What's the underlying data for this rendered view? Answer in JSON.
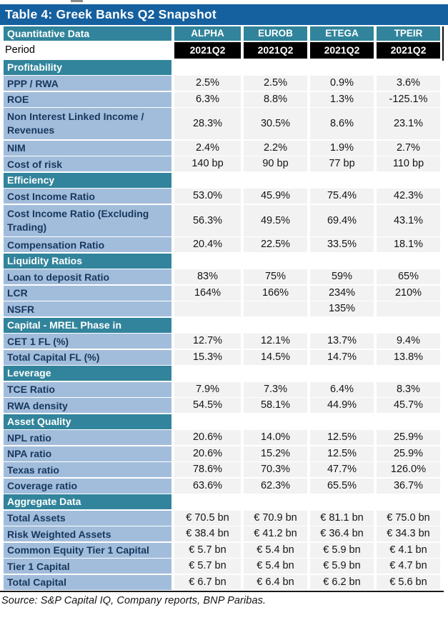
{
  "page": {
    "title": "Table 4: Greek Banks Q2 Snapshot",
    "source_note": "Source: S&P Capital IQ, Company reports, BNP Paribas."
  },
  "colors": {
    "title_bar": "#15609F",
    "section_header": "#31849B",
    "row_label": "#A2BDDB",
    "value_cell": "#F2F2F2",
    "period_cell": "#000000",
    "label_text": "#17375E"
  },
  "table": {
    "header": {
      "label": "Quantitative Data",
      "columns": [
        "ALPHA",
        "EUROB",
        "ETEGA",
        "TPEIR"
      ]
    },
    "period_row": {
      "label": "Period",
      "values": [
        "2021Q2",
        "2021Q2",
        "2021Q2",
        "2021Q2"
      ]
    },
    "sections": [
      {
        "title": "Profitability",
        "rows": [
          {
            "label": "PPP / RWA",
            "values": [
              "2.5%",
              "2.5%",
              "0.9%",
              "3.6%"
            ]
          },
          {
            "label": "ROE",
            "values": [
              "6.3%",
              "8.8%",
              "1.3%",
              "-125.1%"
            ]
          },
          {
            "label": "Non Interest Linked Income / Revenues",
            "tall": true,
            "values": [
              "28.3%",
              "30.5%",
              "8.6%",
              "23.1%"
            ]
          },
          {
            "label": "NIM",
            "values": [
              "2.4%",
              "2.2%",
              "1.9%",
              "2.7%"
            ]
          },
          {
            "label": "Cost of risk",
            "values": [
              "140 bp",
              "90 bp",
              "77 bp",
              "110 bp"
            ]
          }
        ]
      },
      {
        "title": "Efficiency",
        "rows": [
          {
            "label": "Cost Income Ratio",
            "values": [
              "53.0%",
              "45.9%",
              "75.4%",
              "42.3%"
            ]
          },
          {
            "label": "Cost Income Ratio (Excluding Trading)",
            "tall": true,
            "values": [
              "56.3%",
              "49.5%",
              "69.4%",
              "43.1%"
            ]
          },
          {
            "label": "Compensation Ratio",
            "values": [
              "20.4%",
              "22.5%",
              "33.5%",
              "18.1%"
            ]
          }
        ]
      },
      {
        "title": "Liquidity Ratios",
        "rows": [
          {
            "label": "Loan to deposit Ratio",
            "values": [
              "83%",
              "75%",
              "59%",
              "65%"
            ]
          },
          {
            "label": "LCR",
            "values": [
              "164%",
              "166%",
              "234%",
              "210%"
            ]
          },
          {
            "label": "NSFR",
            "values": [
              "",
              "",
              "135%",
              ""
            ]
          }
        ]
      },
      {
        "title": "Capital - MREL Phase in",
        "rows": [
          {
            "label": "CET 1 FL (%)",
            "values": [
              "12.7%",
              "12.1%",
              "13.7%",
              "9.4%"
            ]
          },
          {
            "label": "Total Capital FL (%)",
            "values": [
              "15.3%",
              "14.5%",
              "14.7%",
              "13.8%"
            ]
          }
        ]
      },
      {
        "title": "Leverage",
        "rows": [
          {
            "label": "TCE Ratio",
            "values": [
              "7.9%",
              "7.3%",
              "6.4%",
              "8.3%"
            ]
          },
          {
            "label": "RWA density",
            "values": [
              "54.5%",
              "58.1%",
              "44.9%",
              "45.7%"
            ]
          }
        ]
      },
      {
        "title": "Asset Quality",
        "rows": [
          {
            "label": "NPL ratio",
            "values": [
              "20.6%",
              "14.0%",
              "12.5%",
              "25.9%"
            ]
          },
          {
            "label": "NPA ratio",
            "values": [
              "20.6%",
              "15.2%",
              "12.5%",
              "25.9%"
            ]
          },
          {
            "label": "Texas ratio",
            "values": [
              "78.6%",
              "70.3%",
              "47.7%",
              "126.0%"
            ]
          },
          {
            "label": "Coverage ratio",
            "values": [
              "63.6%",
              "62.3%",
              "65.5%",
              "36.7%"
            ]
          }
        ]
      },
      {
        "title": "Aggregate Data",
        "rows": [
          {
            "label": "Total Assets",
            "values": [
              "€ 70.5 bn",
              "€ 70.9 bn",
              "€ 81.1 bn",
              "€ 75.0 bn"
            ]
          },
          {
            "label": "Risk Weighted Assets",
            "values": [
              "€ 38.4 bn",
              "€ 41.2 bn",
              "€ 36.4 bn",
              "€ 34.3 bn"
            ]
          },
          {
            "label": "Common Equity Tier 1 Capital",
            "values": [
              "€ 5.7 bn",
              "€ 5.4 bn",
              "€ 5.9 bn",
              "€ 4.1 bn"
            ]
          },
          {
            "label": "Tier 1 Capital",
            "values": [
              "€ 5.7 bn",
              "€ 5.4 bn",
              "€ 5.9 bn",
              "€ 4.7 bn"
            ]
          },
          {
            "label": "Total Capital",
            "values": [
              "€ 6.7 bn",
              "€ 6.4 bn",
              "€ 6.2 bn",
              "€ 5.6 bn"
            ]
          }
        ]
      }
    ]
  }
}
